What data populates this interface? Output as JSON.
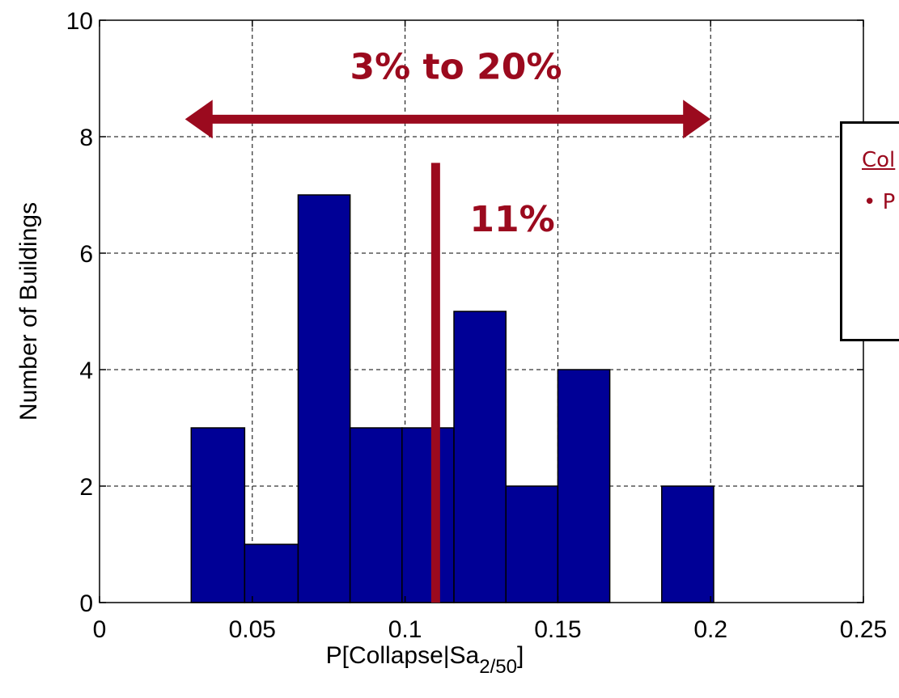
{
  "chart_data": {
    "type": "bar",
    "xlabel": "P[Collapse|Sa",
    "xlabel_sub": "2/50",
    "xlabel_close": "]",
    "ylabel": "Number of Buildings",
    "xlim": [
      0,
      0.25
    ],
    "ylim": [
      0,
      10
    ],
    "xticks": [
      "0",
      "0.05",
      "0.1",
      "0.15",
      "0.2",
      "0.25"
    ],
    "yticks": [
      "0",
      "2",
      "4",
      "6",
      "8",
      "10"
    ],
    "grid": true,
    "bars": [
      {
        "x0": 0.03,
        "x1": 0.0475,
        "value": 3
      },
      {
        "x0": 0.0475,
        "x1": 0.065,
        "value": 1
      },
      {
        "x0": 0.065,
        "x1": 0.082,
        "value": 7
      },
      {
        "x0": 0.082,
        "x1": 0.099,
        "value": 3
      },
      {
        "x0": 0.099,
        "x1": 0.116,
        "value": 3
      },
      {
        "x0": 0.116,
        "x1": 0.133,
        "value": 5
      },
      {
        "x0": 0.133,
        "x1": 0.15,
        "value": 2
      },
      {
        "x0": 0.15,
        "x1": 0.167,
        "value": 4
      },
      {
        "x0": 0.184,
        "x1": 0.201,
        "value": 2
      }
    ],
    "bar_color": "#000096",
    "median_line": {
      "x": 0.11,
      "y_top": 7.55,
      "label": "11%"
    },
    "range_arrow": {
      "x0": 0.028,
      "x1": 0.2,
      "y": 8.3,
      "label": "3% to 20%"
    },
    "annotation_color": "#9b0a1e"
  },
  "callout": {
    "title": "Col",
    "bullet": "• P"
  }
}
